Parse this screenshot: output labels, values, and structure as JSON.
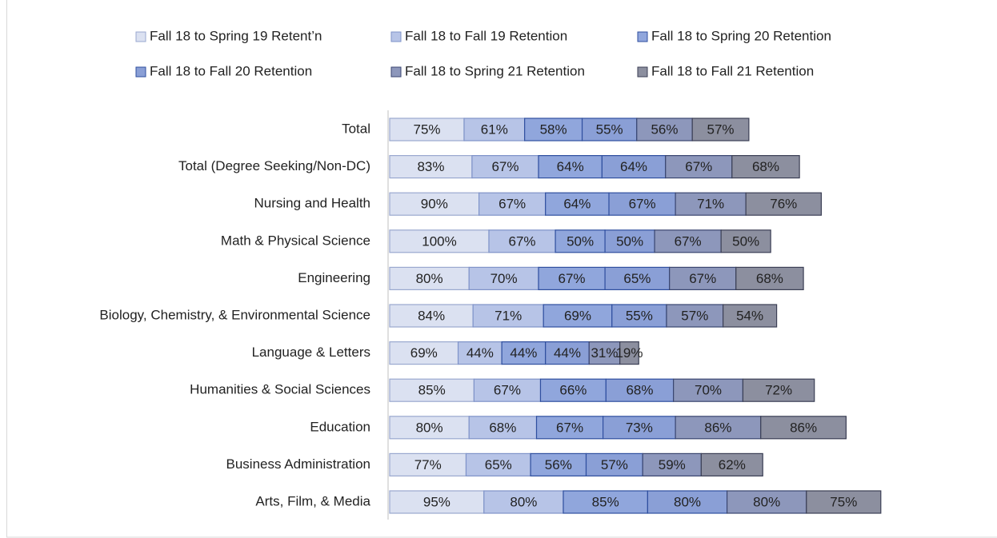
{
  "chart_data": {
    "type": "stacked-bar-horizontal",
    "categories": [
      "Total",
      "Total (Degree Seeking/Non-DC)",
      "Nursing and Health",
      "Math & Physical Science",
      "Engineering",
      "Biology, Chemistry, & Environmental Science",
      "Language & Letters",
      "Humanities & Social Sciences",
      "Education",
      "Business Administration",
      "Arts, Film, & Media"
    ],
    "series": [
      {
        "name": "Fall 18 to Spring 19 Retent’n",
        "color": "#dbe1f1",
        "border": "#9aa8cf",
        "values": [
          75,
          83,
          90,
          100,
          80,
          84,
          69,
          85,
          80,
          77,
          95
        ],
        "value_labels": [
          "75%",
          "83%",
          "90%",
          "100%",
          "80%",
          "84%",
          "69%",
          "85%",
          "80%",
          "77%",
          "95%"
        ]
      },
      {
        "name": "Fall 18 to Fall 19 Retention",
        "color": "#b7c4e7",
        "border": "#7f93c9",
        "values": [
          61,
          67,
          67,
          67,
          70,
          71,
          44,
          67,
          68,
          65,
          80
        ],
        "value_labels": [
          "61%",
          "67%",
          "67%",
          "67%",
          "70%",
          "71%",
          "44%",
          "67%",
          "68%",
          "65%",
          "80%"
        ]
      },
      {
        "name": "Fall 18 to Spring 20 Retention",
        "color": "#90a6dc",
        "border": "#2f4f9f",
        "values": [
          58,
          64,
          64,
          50,
          67,
          69,
          44,
          66,
          67,
          56,
          85
        ],
        "value_labels": [
          "58%",
          "64%",
          "64%",
          "50%",
          "67%",
          "69%",
          "44%",
          "66%",
          "67%",
          "56%",
          "85%"
        ]
      },
      {
        "name": "Fall 18 to Fall 20 Retention",
        "color": "#8a9fd6",
        "border": "#2f4f9f",
        "values": [
          55,
          64,
          67,
          50,
          65,
          55,
          44,
          68,
          73,
          57,
          80
        ],
        "value_labels": [
          "55%",
          "64%",
          "67%",
          "50%",
          "65%",
          "55%",
          "44%",
          "68%",
          "73%",
          "57%",
          "80%"
        ]
      },
      {
        "name": "Fall 18 to Spring 21 Retention",
        "color": "#8d97bb",
        "border": "#3a4670",
        "values": [
          56,
          67,
          71,
          67,
          67,
          57,
          31,
          70,
          86,
          59,
          80
        ],
        "value_labels": [
          "56%",
          "67%",
          "71%",
          "67%",
          "67%",
          "57%",
          "31%",
          "70%",
          "86%",
          "59%",
          "80%"
        ]
      },
      {
        "name": "Fall 18 to Fall 21 Retention",
        "color": "#8c8f9f",
        "border": "#3b3f55",
        "values": [
          57,
          68,
          76,
          50,
          68,
          54,
          19,
          72,
          86,
          62,
          75
        ],
        "value_labels": [
          "57%",
          "68%",
          "76%",
          "50%",
          "68%",
          "54%",
          "19%",
          "72%",
          "86%",
          "62%",
          "75%"
        ]
      }
    ],
    "legend": "top"
  }
}
